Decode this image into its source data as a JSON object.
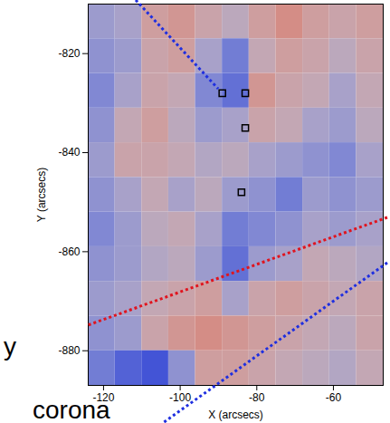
{
  "chart_data": {
    "type": "heatmap",
    "xlabel": "X (arcsecs)",
    "ylabel": "Y (arcsecs)",
    "xlim": [
      -124,
      -47
    ],
    "ylim": [
      -887,
      -810
    ],
    "xticks": [
      -120,
      -100,
      -80,
      -60
    ],
    "yticks": [
      -880,
      -860,
      -840,
      -820
    ],
    "cells": {
      "x_edges": [
        -124,
        -117,
        -110,
        -103,
        -96,
        -89,
        -82,
        -75,
        -68,
        -61,
        -54,
        -47
      ],
      "y_edges": [
        -810,
        -817,
        -824,
        -831,
        -838,
        -845,
        -852,
        -859,
        -866,
        -873,
        -880,
        -887
      ],
      "zlim": [
        -1,
        1
      ],
      "values": [
        [
          -0.3,
          -0.2,
          0.3,
          0.4,
          0.2,
          0.0,
          0.3,
          0.5,
          0.3,
          0.2,
          0.3
        ],
        [
          -0.4,
          -0.3,
          0.2,
          0.3,
          -0.2,
          -0.6,
          0.1,
          0.3,
          0.2,
          0.0,
          0.2
        ],
        [
          -0.5,
          -0.2,
          0.2,
          0.1,
          -0.5,
          -0.7,
          0.4,
          0.2,
          0.1,
          -0.2,
          0.1
        ],
        [
          -0.4,
          0.1,
          0.3,
          0.0,
          -0.3,
          -0.2,
          0.2,
          0.1,
          -0.2,
          -0.3,
          0.0
        ],
        [
          -0.3,
          0.2,
          0.2,
          0.1,
          -0.1,
          0.0,
          -0.2,
          -0.3,
          -0.4,
          -0.5,
          -0.2
        ],
        [
          -0.4,
          -0.2,
          0.1,
          -0.2,
          0.0,
          -0.3,
          -0.4,
          -0.6,
          -0.3,
          -0.4,
          -0.3
        ],
        [
          -0.5,
          -0.3,
          0.0,
          0.1,
          -0.2,
          -0.6,
          -0.5,
          -0.4,
          -0.2,
          -0.3,
          -0.2
        ],
        [
          -0.4,
          -0.3,
          -0.1,
          0.0,
          -0.3,
          -0.7,
          -0.3,
          -0.2,
          0.1,
          0.0,
          -0.1
        ],
        [
          -0.3,
          -0.2,
          0.1,
          0.2,
          0.3,
          -0.2,
          0.2,
          0.3,
          0.2,
          0.1,
          0.2
        ],
        [
          -0.4,
          -0.3,
          0.2,
          0.4,
          0.5,
          0.4,
          0.3,
          0.2,
          0.1,
          0.0,
          0.2
        ],
        [
          -0.6,
          -0.8,
          -0.9,
          -0.4,
          0.3,
          0.3,
          0.2,
          0.1,
          0.0,
          -0.1,
          0.1
        ]
      ]
    },
    "points": {
      "x": [
        -89,
        -83,
        -83,
        -84
      ],
      "y": [
        -828,
        -828,
        -835,
        -848
      ],
      "marker": "square",
      "color": "#000000"
    },
    "annotations": [
      "corona",
      "y"
    ]
  }
}
